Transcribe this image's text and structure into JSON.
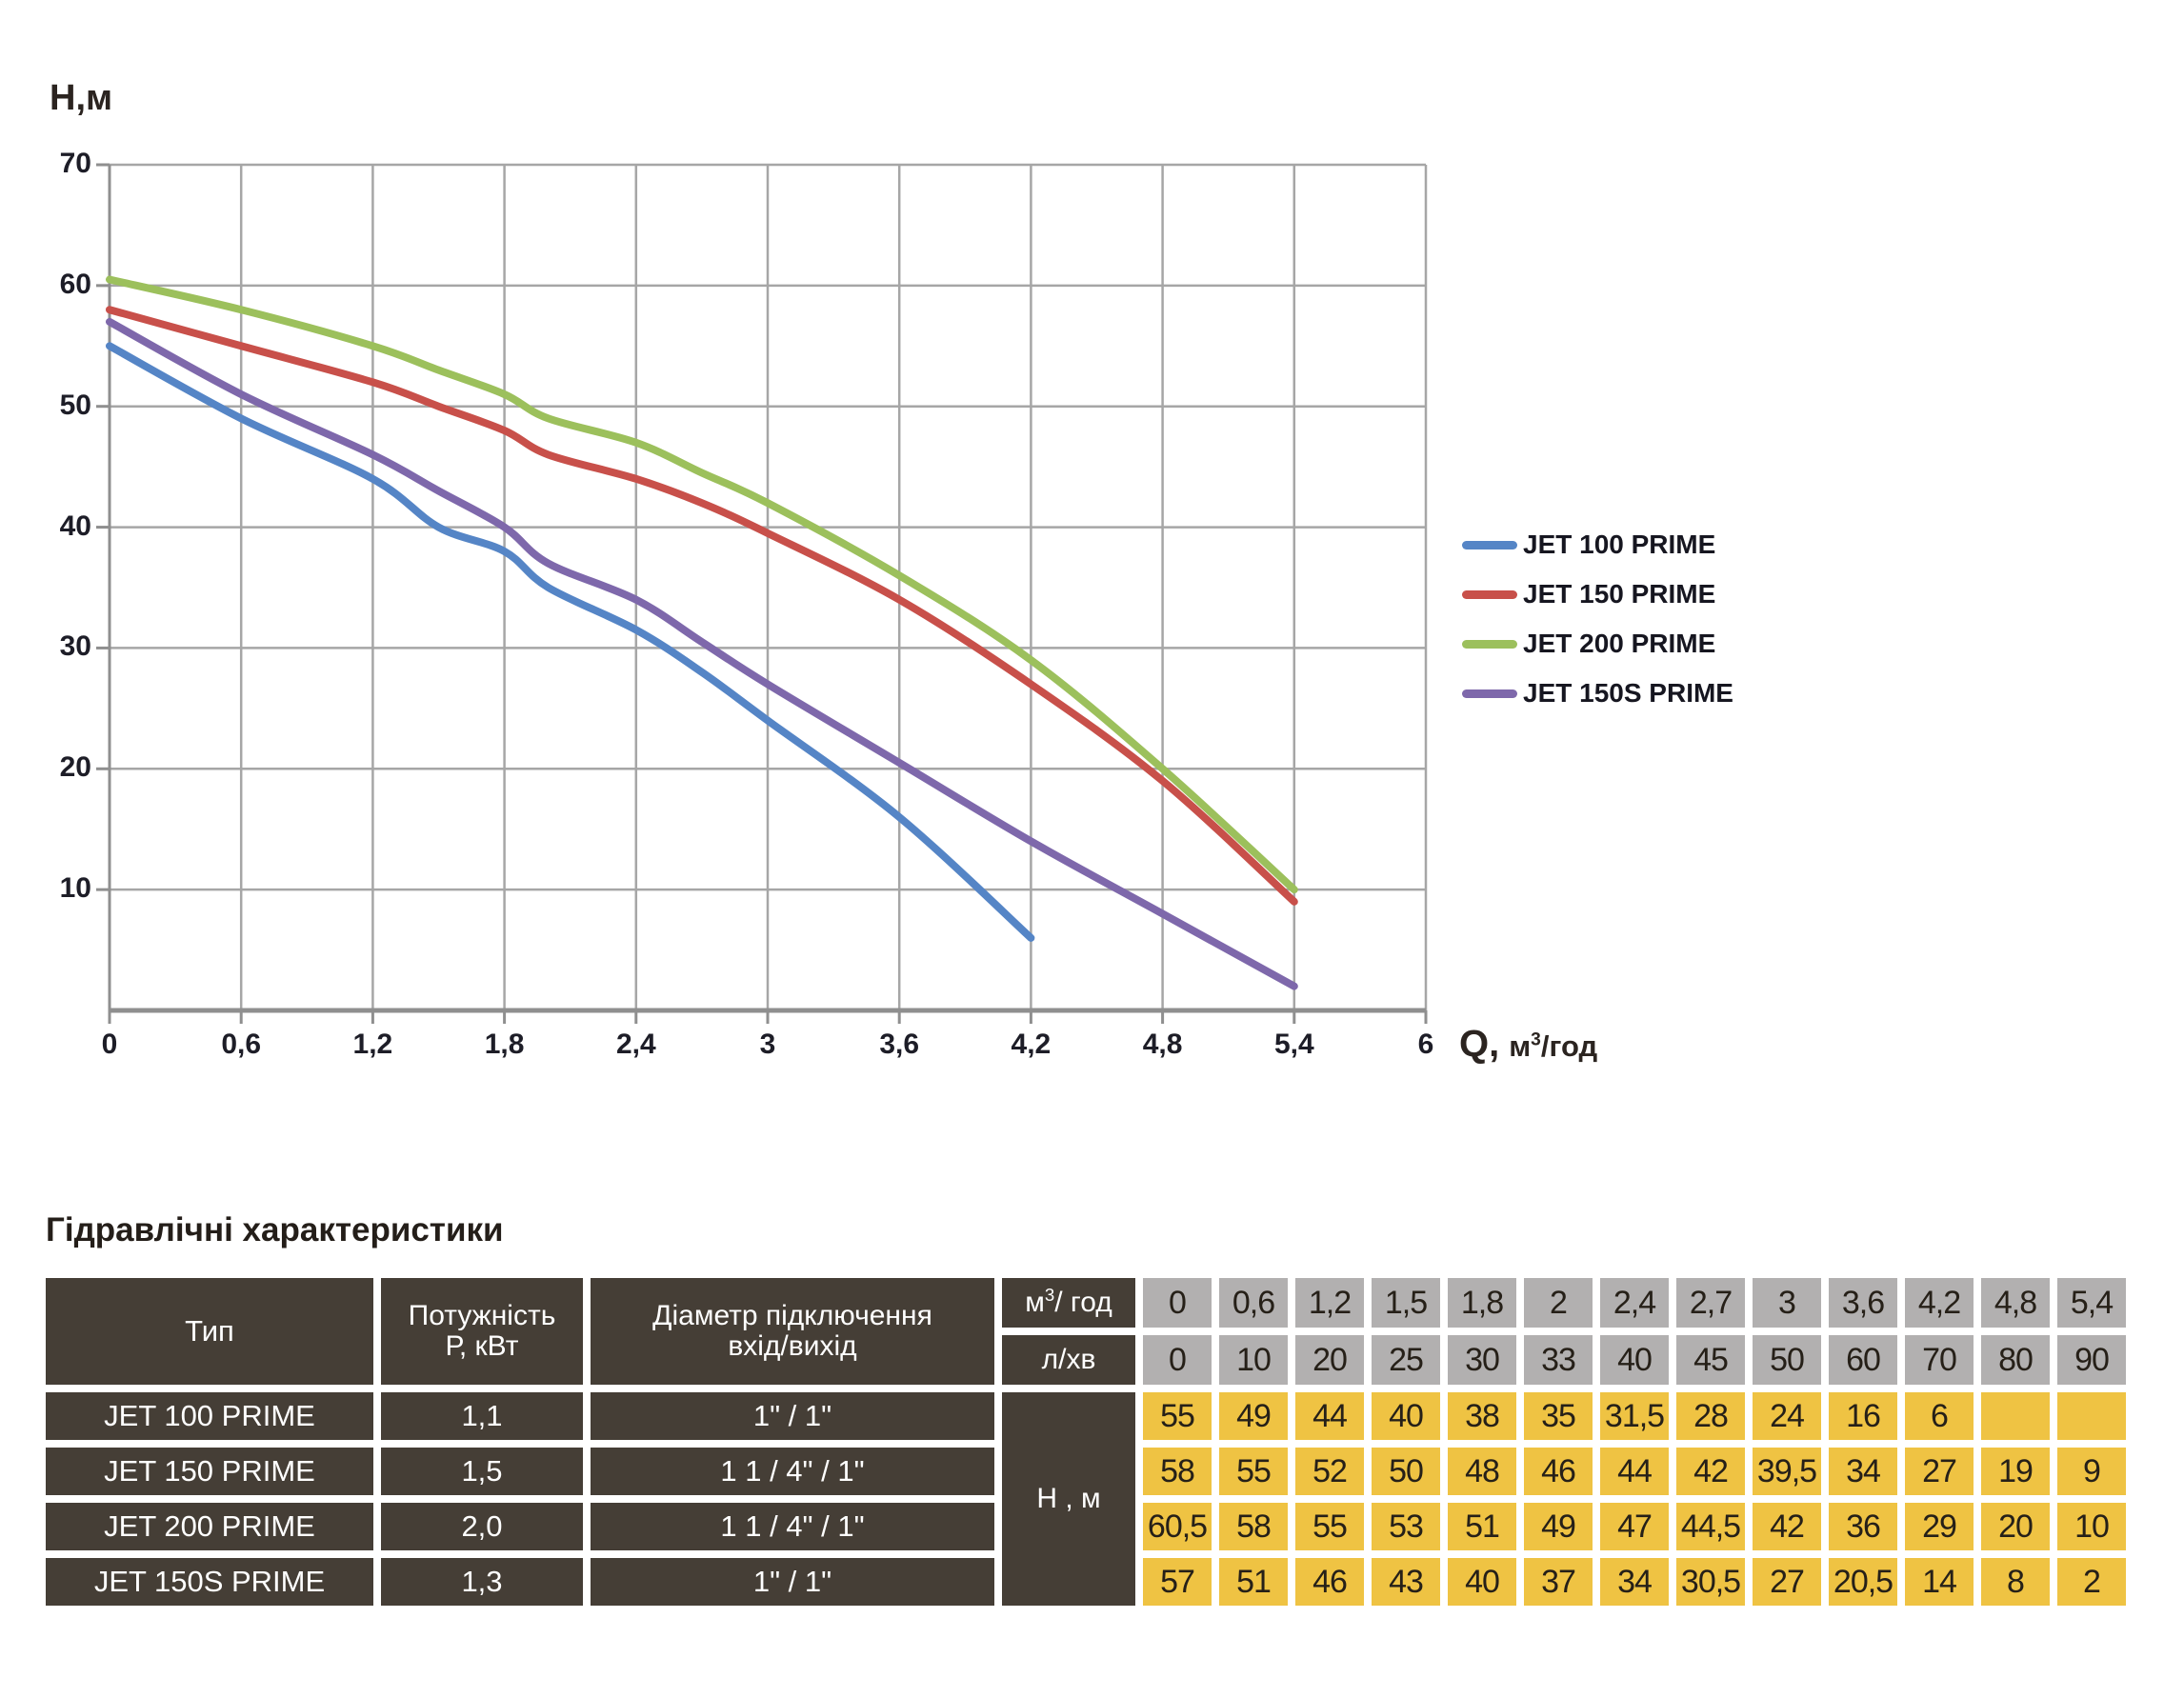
{
  "chart_data": {
    "type": "line",
    "y_axis_title": "Н,м",
    "x_axis_title": {
      "prefix": "Q,",
      "unit_pre": "м",
      "unit_sup": "3",
      "unit_post": "/год"
    },
    "xlim": [
      0,
      6
    ],
    "ylim": [
      0,
      70
    ],
    "grid": {
      "x_step": 0.6,
      "y_step": 10,
      "on": true
    },
    "x_ticks": [
      "0",
      "0,6",
      "1,2",
      "1,8",
      "2,4",
      "3",
      "3,6",
      "4,2",
      "4,8",
      "5,4",
      "6"
    ],
    "x_tick_values": [
      0,
      0.6,
      1.2,
      1.8,
      2.4,
      3,
      3.6,
      4.2,
      4.8,
      5.4,
      6
    ],
    "y_ticks": [
      "70",
      "60",
      "50",
      "40",
      "30",
      "20",
      "10"
    ],
    "y_tick_values": [
      70,
      60,
      50,
      40,
      30,
      20,
      10
    ],
    "legend_position": "right",
    "series": [
      {
        "name": "JET 100 PRIME",
        "color": "#5585c6",
        "x": [
          0,
          0.6,
          1.2,
          1.5,
          1.8,
          2,
          2.4,
          2.7,
          3,
          3.6,
          4.2
        ],
        "y": [
          55,
          49,
          44,
          40,
          38,
          35,
          31.5,
          28,
          24,
          16,
          6
        ]
      },
      {
        "name": "JET 150 PRIME",
        "color": "#c8504a",
        "x": [
          0,
          0.6,
          1.2,
          1.5,
          1.8,
          2,
          2.4,
          2.7,
          3,
          3.6,
          4.2,
          4.8,
          5.4
        ],
        "y": [
          58,
          55,
          52,
          50,
          48,
          46,
          44,
          42,
          39.5,
          34,
          27,
          19,
          9
        ]
      },
      {
        "name": "JET 200 PRIME",
        "color": "#9cc05c",
        "x": [
          0,
          0.6,
          1.2,
          1.5,
          1.8,
          2,
          2.4,
          2.7,
          3,
          3.6,
          4.2,
          4.8,
          5.4
        ],
        "y": [
          60.5,
          58,
          55,
          53,
          51,
          49,
          47,
          44.5,
          42,
          36,
          29,
          20,
          10
        ]
      },
      {
        "name": "JET 150S PRIME",
        "color": "#7e68ab",
        "x": [
          0,
          0.6,
          1.2,
          1.5,
          1.8,
          2,
          2.4,
          2.7,
          3,
          3.6,
          4.2,
          4.8,
          5.4
        ],
        "y": [
          57,
          51,
          46,
          43,
          40,
          37,
          34,
          30.5,
          27,
          20.5,
          14,
          8,
          2
        ]
      }
    ]
  },
  "table": {
    "title": "Гідравлічні характеристики",
    "header": {
      "type": "Тип",
      "power_line1": "Потужність",
      "power_line2": "Р, кВт",
      "diameter_line1": "Діаметр підключення",
      "diameter_line2": "вхід/вихід",
      "flow_m3": {
        "pre": "м",
        "sup": "3",
        "post": "/ год"
      },
      "flow_lmin": "л/хв",
      "head_unit": "Н , м"
    },
    "flow_m3_values": [
      "0",
      "0,6",
      "1,2",
      "1,5",
      "1,8",
      "2",
      "2,4",
      "2,7",
      "3",
      "3,6",
      "4,2",
      "4,8",
      "5,4"
    ],
    "flow_lmin_values": [
      "0",
      "10",
      "20",
      "25",
      "30",
      "33",
      "40",
      "45",
      "50",
      "60",
      "70",
      "80",
      "90"
    ],
    "rows": [
      {
        "type": "JET 100 PRIME",
        "power": "1,1",
        "diameter": "1\" / 1\"",
        "head": [
          "55",
          "49",
          "44",
          "40",
          "38",
          "35",
          "31,5",
          "28",
          "24",
          "16",
          "6",
          "",
          ""
        ]
      },
      {
        "type": "JET 150 PRIME",
        "power": "1,5",
        "diameter": "1 1 / 4\" / 1\"",
        "head": [
          "58",
          "55",
          "52",
          "50",
          "48",
          "46",
          "44",
          "42",
          "39,5",
          "34",
          "27",
          "19",
          "9"
        ]
      },
      {
        "type": "JET 200 PRIME",
        "power": "2,0",
        "diameter": "1 1 / 4\" / 1\"",
        "head": [
          "60,5",
          "58",
          "55",
          "53",
          "51",
          "49",
          "47",
          "44,5",
          "42",
          "36",
          "29",
          "20",
          "10"
        ]
      },
      {
        "type": "JET 150S PRIME",
        "power": "1,3",
        "diameter": "1\" / 1\"",
        "head": [
          "57",
          "51",
          "46",
          "43",
          "40",
          "37",
          "34",
          "30,5",
          "27",
          "20,5",
          "14",
          "8",
          "2"
        ]
      }
    ]
  }
}
